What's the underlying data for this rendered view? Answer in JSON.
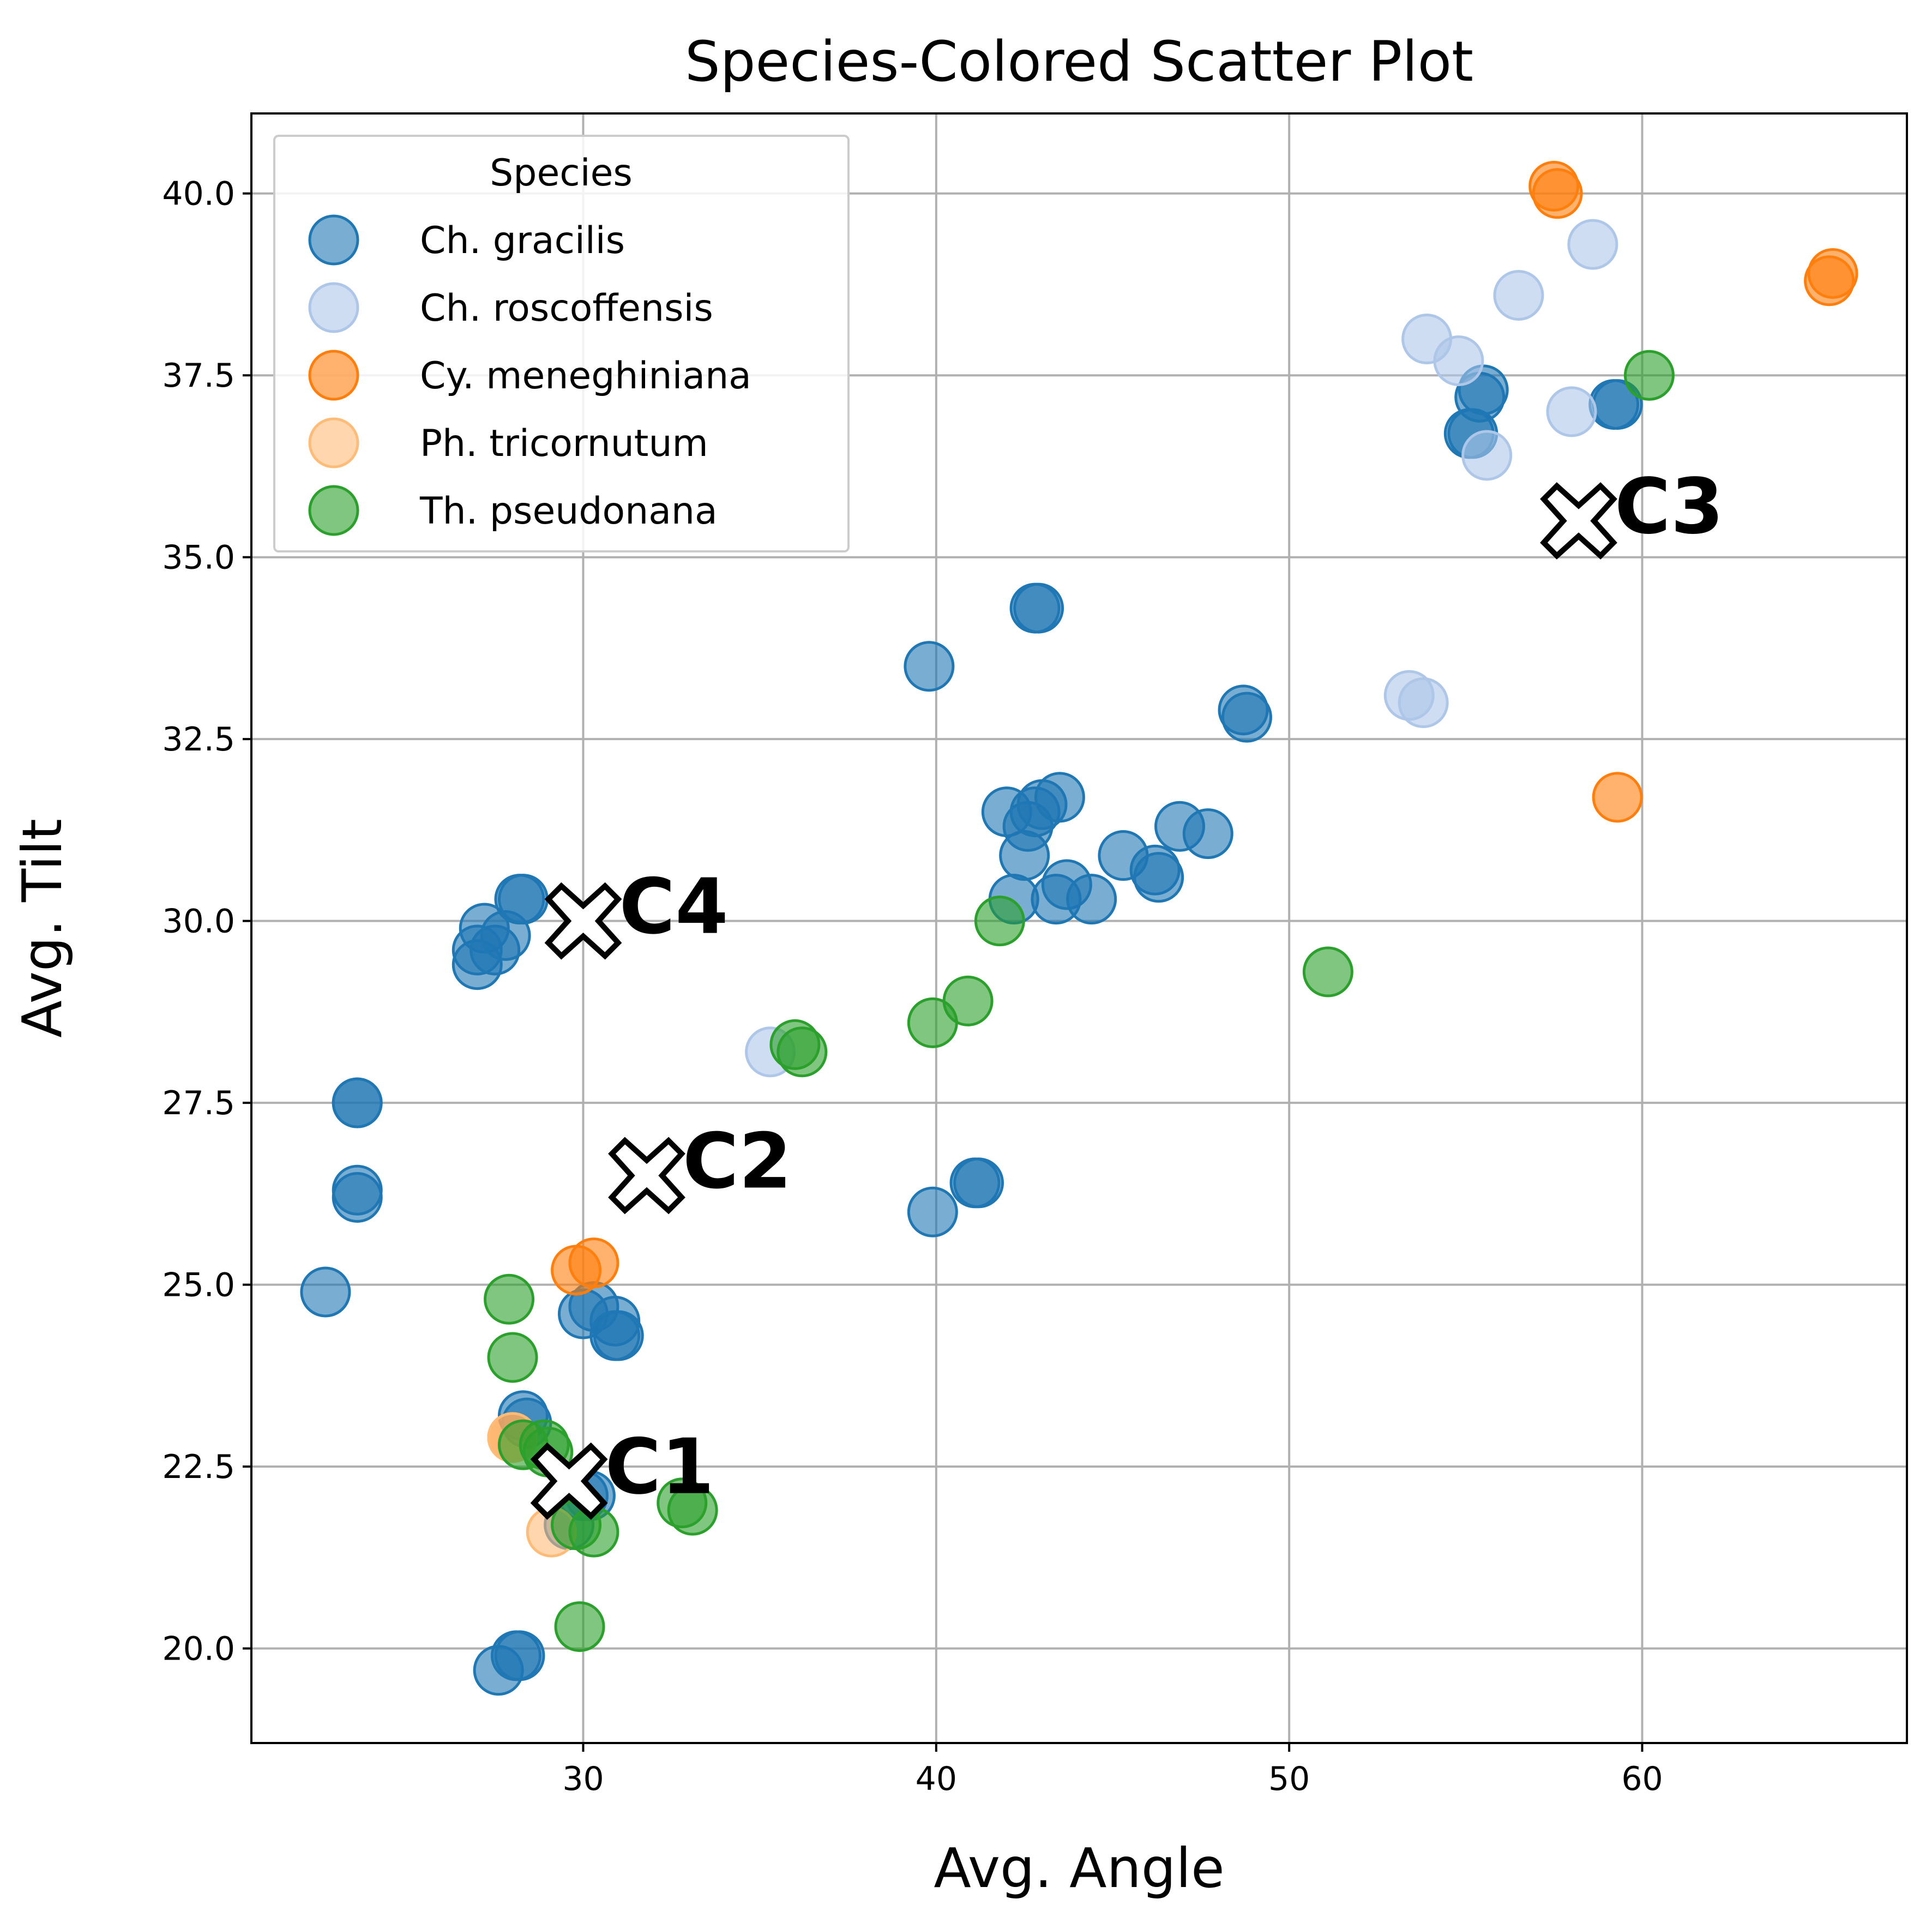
{
  "chart_data": {
    "type": "scatter",
    "title": "Species-Colored Scatter Plot",
    "xlabel": "Avg. Angle",
    "ylabel": "Avg. Tilt",
    "xlim": [
      20.6,
      67.5
    ],
    "ylim": [
      18.7,
      41.1
    ],
    "xticks": [
      30,
      40,
      50,
      60
    ],
    "yticks": [
      20.0,
      22.5,
      25.0,
      27.5,
      30.0,
      32.5,
      35.0,
      37.5,
      40.0
    ],
    "grid": true,
    "legend": {
      "title": "Species",
      "placement": "top-left"
    },
    "series": [
      {
        "name": "Ch. gracilis",
        "color": "#1f77b4",
        "points": [
          [
            22.7,
            24.9
          ],
          [
            23.6,
            26.2
          ],
          [
            23.6,
            26.3
          ],
          [
            23.6,
            27.5
          ],
          [
            23.6,
            27.5
          ],
          [
            27.0,
            29.6
          ],
          [
            27.0,
            29.4
          ],
          [
            27.2,
            29.9
          ],
          [
            27.5,
            29.6
          ],
          [
            27.8,
            29.8
          ],
          [
            28.2,
            30.3
          ],
          [
            28.3,
            30.3
          ],
          [
            27.6,
            19.7
          ],
          [
            28.1,
            19.9
          ],
          [
            28.2,
            19.9
          ],
          [
            28.3,
            23.2
          ],
          [
            28.4,
            23.1
          ],
          [
            29.6,
            21.7
          ],
          [
            30.0,
            22.1
          ],
          [
            30.2,
            22.1
          ],
          [
            30.0,
            24.6
          ],
          [
            30.3,
            24.7
          ],
          [
            30.9,
            24.5
          ],
          [
            31.0,
            24.3
          ],
          [
            30.9,
            24.3
          ],
          [
            39.8,
            33.5
          ],
          [
            39.9,
            26.0
          ],
          [
            41.1,
            26.4
          ],
          [
            41.2,
            26.4
          ],
          [
            42.0,
            31.5
          ],
          [
            42.2,
            30.3
          ],
          [
            42.5,
            30.9
          ],
          [
            42.6,
            31.3
          ],
          [
            42.8,
            31.5
          ],
          [
            43.0,
            31.6
          ],
          [
            43.5,
            31.7
          ],
          [
            43.4,
            30.3
          ],
          [
            43.7,
            30.5
          ],
          [
            44.4,
            30.3
          ],
          [
            45.3,
            30.9
          ],
          [
            46.2,
            30.7
          ],
          [
            46.3,
            30.6
          ],
          [
            46.9,
            31.3
          ],
          [
            47.7,
            31.2
          ],
          [
            42.9,
            34.3
          ],
          [
            42.8,
            34.3
          ],
          [
            48.7,
            32.9
          ],
          [
            48.8,
            32.8
          ],
          [
            55.1,
            36.7
          ],
          [
            55.2,
            36.7
          ],
          [
            55.4,
            37.2
          ],
          [
            55.5,
            37.3
          ],
          [
            59.2,
            37.1
          ],
          [
            59.3,
            37.1
          ]
        ]
      },
      {
        "name": "Ch. roscoffensis",
        "color": "#aec7e8",
        "points": [
          [
            35.3,
            28.2
          ],
          [
            53.4,
            33.1
          ],
          [
            53.8,
            33.0
          ],
          [
            53.9,
            38.0
          ],
          [
            54.8,
            37.7
          ],
          [
            55.6,
            36.4
          ],
          [
            56.5,
            38.6
          ],
          [
            58.0,
            37.0
          ],
          [
            58.6,
            39.3
          ]
        ]
      },
      {
        "name": "Cy. meneghiniana",
        "color": "#ff7f0e",
        "points": [
          [
            28.0,
            22.9
          ],
          [
            29.8,
            25.2
          ],
          [
            30.3,
            25.3
          ],
          [
            57.5,
            40.1
          ],
          [
            57.6,
            40.0
          ],
          [
            59.3,
            31.7
          ],
          [
            65.3,
            38.8
          ],
          [
            65.4,
            38.9
          ]
        ]
      },
      {
        "name": "Ph. tricornutum",
        "color": "#ffbb78",
        "points": [
          [
            28.0,
            22.9
          ],
          [
            29.1,
            21.6
          ]
        ]
      },
      {
        "name": "Th. pseudonana",
        "color": "#2ca02c",
        "points": [
          [
            27.9,
            24.8
          ],
          [
            28.0,
            24.0
          ],
          [
            28.3,
            22.8
          ],
          [
            28.9,
            22.8
          ],
          [
            29.0,
            22.7
          ],
          [
            29.8,
            21.7
          ],
          [
            30.3,
            21.6
          ],
          [
            29.9,
            20.3
          ],
          [
            32.8,
            22.0
          ],
          [
            33.1,
            21.9
          ],
          [
            36.0,
            28.3
          ],
          [
            36.2,
            28.2
          ],
          [
            39.9,
            28.6
          ],
          [
            40.9,
            28.9
          ],
          [
            41.8,
            30.0
          ],
          [
            51.1,
            29.3
          ],
          [
            60.2,
            37.5
          ]
        ]
      }
    ],
    "centroids": [
      {
        "label": "C1",
        "x": 29.6,
        "y": 22.3
      },
      {
        "label": "C2",
        "x": 31.8,
        "y": 26.5
      },
      {
        "label": "C3",
        "x": 58.2,
        "y": 35.5
      },
      {
        "label": "C4",
        "x": 30.0,
        "y": 30.0
      }
    ]
  }
}
